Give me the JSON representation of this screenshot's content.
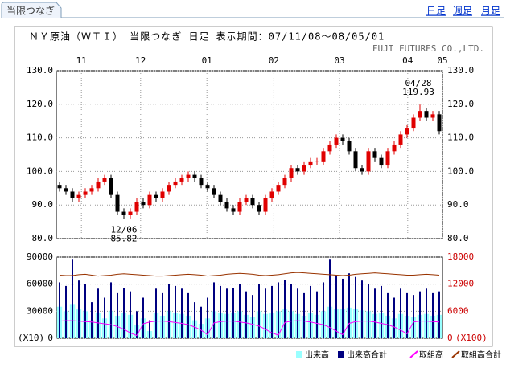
{
  "header": {
    "tab": "当限つなぎ",
    "links": [
      "日足",
      "週足",
      "月足"
    ]
  },
  "chart_data": [
    {
      "type": "candlestick",
      "title": "ＮＹ原油（ＷＴＩ） 当限つなぎ 日足 表示期間：07/11/08～08/05/01",
      "source": "FUJI FUTURES CO.,LTD.",
      "open": [
        96,
        95,
        94,
        92,
        93,
        94,
        95,
        97,
        98,
        93,
        88,
        87,
        88,
        91,
        90,
        93,
        92,
        94,
        96,
        97,
        98,
        99,
        98,
        96,
        95,
        93,
        91,
        89,
        88,
        91,
        92,
        90,
        88,
        92,
        94,
        96,
        98,
        101,
        100,
        102,
        103,
        103,
        106,
        108,
        110,
        109,
        106,
        101,
        100,
        106,
        104,
        102,
        106,
        108,
        111,
        113,
        116,
        118,
        116,
        117
      ],
      "high": [
        97,
        96,
        95,
        94,
        95,
        96,
        98,
        99,
        99,
        94,
        89,
        89,
        92,
        92,
        94,
        94,
        95,
        97,
        98,
        99,
        100,
        100,
        99,
        97,
        96,
        94,
        92,
        90,
        92,
        93,
        93,
        91,
        93,
        95,
        97,
        99,
        102,
        102,
        103,
        104,
        104,
        107,
        109,
        111,
        111,
        110,
        107,
        102,
        107,
        107,
        105,
        107,
        109,
        112,
        114,
        117,
        119.93,
        119,
        118,
        118
      ],
      "low": [
        94,
        93,
        91,
        91,
        92,
        93,
        94,
        96,
        92,
        87,
        85.82,
        86,
        87,
        89,
        89,
        91,
        91,
        93,
        95,
        96,
        97,
        97,
        95,
        94,
        92,
        90,
        88,
        87,
        87,
        90,
        89,
        87,
        87,
        91,
        93,
        95,
        97,
        99,
        99,
        101,
        102,
        102,
        105,
        107,
        108,
        105,
        100,
        99,
        99,
        103,
        101,
        101,
        105,
        107,
        110,
        112,
        115,
        115,
        115,
        111
      ],
      "close": [
        95,
        94,
        92,
        93,
        94,
        95,
        97,
        98,
        93,
        88,
        87,
        88,
        91,
        90,
        93,
        92,
        94,
        96,
        97,
        98,
        99,
        98,
        96,
        95,
        93,
        91,
        89,
        88,
        91,
        92,
        90,
        88,
        92,
        94,
        96,
        98,
        101,
        100,
        102,
        103,
        103,
        106,
        108,
        110,
        109,
        106,
        101,
        100,
        106,
        104,
        102,
        106,
        108,
        111,
        113,
        116,
        118,
        116,
        117,
        112
      ],
      "up_color": "#e00000",
      "down_color": "#000000",
      "xlim": [
        0,
        60
      ],
      "xticks": [
        {
          "value": 3.9,
          "label": "11"
        },
        {
          "value": 13.1,
          "label": "12"
        },
        {
          "value": 23.4,
          "label": "01"
        },
        {
          "value": 33.8,
          "label": "02"
        },
        {
          "value": 44,
          "label": "03"
        },
        {
          "value": 54.6,
          "label": "04"
        },
        {
          "value": 60,
          "label": "05"
        }
      ],
      "ylim": [
        80,
        130
      ],
      "yticks": [
        {
          "value": 80,
          "label": "80.0"
        },
        {
          "value": 90,
          "label": "90.0"
        },
        {
          "value": 100,
          "label": "100.0"
        },
        {
          "value": 110,
          "label": "110.0"
        },
        {
          "value": 120,
          "label": "120.0"
        },
        {
          "value": 130,
          "label": "130.0"
        }
      ],
      "grid": true,
      "annotations": [
        {
          "text": "04/28",
          "index": 56
        },
        {
          "text": "12/06",
          "index": 10
        }
      ]
    },
    {
      "type": "volume",
      "ylim": [
        0,
        90000
      ],
      "yticks": [
        0,
        30000,
        60000,
        90000
      ],
      "y_note": "(X10)",
      "y2lim": [
        0,
        18000
      ],
      "y2ticks": [
        0,
        6000,
        12000,
        18000
      ],
      "y2_note": "(X100)",
      "grid": true,
      "series": [
        {
          "name": "出来高",
          "color": "#99ffff",
          "kind": "bar",
          "values": [
            35000,
            30000,
            38000,
            32000,
            30000,
            20000,
            28000,
            22000,
            30000,
            25000,
            28000,
            26000,
            15000,
            22000,
            8000,
            28000,
            25000,
            30000,
            28000,
            27000,
            25000,
            20000,
            16000,
            22000,
            30000,
            28000,
            27000,
            28000,
            30000,
            26000,
            24000,
            30000,
            27000,
            28000,
            30000,
            32000,
            30000,
            27000,
            25000,
            28000,
            26000,
            30000,
            35000,
            33000,
            32000,
            34000,
            33000,
            31000,
            30000,
            27000,
            28000,
            25000,
            22000,
            27000,
            25000,
            24000,
            26000,
            27000,
            25000,
            26000
          ]
        },
        {
          "name": "出来高合計",
          "color": "#000080",
          "kind": "bar",
          "values": [
            62000,
            58000,
            88000,
            64000,
            60000,
            40000,
            55000,
            45000,
            62000,
            50000,
            56000,
            52000,
            30000,
            45000,
            20000,
            55000,
            50000,
            60000,
            58000,
            55000,
            50000,
            40000,
            35000,
            45000,
            62000,
            58000,
            55000,
            56000,
            60000,
            52000,
            48000,
            60000,
            55000,
            58000,
            62000,
            65000,
            60000,
            55000,
            50000,
            58000,
            52000,
            62000,
            88000,
            70000,
            66000,
            72000,
            68000,
            64000,
            60000,
            55000,
            58000,
            50000,
            45000,
            55000,
            50000,
            48000,
            52000,
            55000,
            50000,
            52000
          ]
        },
        {
          "name": "取組高",
          "color": "#ff00ff",
          "kind": "line",
          "axis": "y2",
          "values": [
            3800,
            3900,
            3900,
            3800,
            3700,
            3600,
            3400,
            3200,
            3000,
            2600,
            2000,
            1200,
            600,
            3200,
            3600,
            3800,
            3800,
            3700,
            3500,
            3300,
            3000,
            2500,
            1800,
            800,
            3400,
            3700,
            3800,
            3800,
            3600,
            3400,
            3100,
            2700,
            2000,
            1200,
            700,
            3500,
            3800,
            3900,
            3800,
            3600,
            3300,
            3000,
            2400,
            1600,
            800,
            3300,
            3700,
            3800,
            3800,
            3600,
            3300,
            3000,
            2500,
            1800,
            1000,
            3600,
            3800,
            3800,
            3700,
            3600
          ]
        },
        {
          "name": "取組高合計",
          "color": "#993300",
          "kind": "line",
          "axis": "y2",
          "values": [
            14000,
            13900,
            13900,
            14100,
            14200,
            14000,
            13800,
            13900,
            14000,
            14200,
            14300,
            14200,
            14100,
            14000,
            13900,
            13800,
            13800,
            13900,
            14000,
            14100,
            14200,
            14100,
            14000,
            13800,
            13900,
            14000,
            14200,
            14300,
            14400,
            14300,
            14200,
            14000,
            13900,
            14000,
            14100,
            14300,
            14500,
            14600,
            14500,
            14400,
            14300,
            14200,
            14100,
            14000,
            13900,
            14000,
            14200,
            14300,
            14400,
            14500,
            14400,
            14300,
            14200,
            14100,
            14000,
            14000,
            14100,
            14200,
            14100,
            14000
          ]
        }
      ]
    }
  ]
}
